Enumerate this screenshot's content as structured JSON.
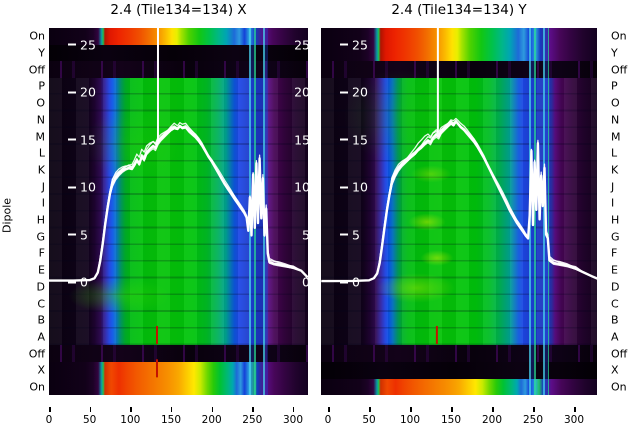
{
  "figure": {
    "y_axis_label": "Dipole",
    "row_labels": [
      "On",
      "Y",
      "Off",
      "P",
      "O",
      "N",
      "M",
      "L",
      "K",
      "J",
      "I",
      "H",
      "G",
      "F",
      "E",
      "D",
      "C",
      "B",
      "A",
      "Off",
      "X",
      "On"
    ],
    "colors": {
      "background": "#ffffff",
      "curve": "#ffffff",
      "marker_line": "#ffffff",
      "red_mark": "#c41200",
      "text": "#000000",
      "heat_low": "#0a0010",
      "heat_mid": "#00c40c",
      "heat_high": "#e01700"
    }
  },
  "chart_data": [
    {
      "type": "heatmap",
      "panel": "X",
      "title": "2.4 (Tile134=134) X",
      "x_ticks": [
        0,
        50,
        100,
        150,
        200,
        250,
        300
      ],
      "value_ticks": [
        25,
        20,
        15,
        10,
        5,
        0
      ],
      "rows": [
        "On",
        "Y",
        "Off",
        "P",
        "O",
        "N",
        "M",
        "L",
        "K",
        "J",
        "I",
        "H",
        "G",
        "F",
        "E",
        "D",
        "C",
        "B",
        "A",
        "Off",
        "X",
        "On"
      ],
      "row_bands": [
        {
          "from": 0,
          "to": 1,
          "kind": "hot"
        },
        {
          "from": 1,
          "to": 2,
          "kind": "black"
        },
        {
          "from": 2,
          "to": 3,
          "kind": "dark"
        },
        {
          "from": 3,
          "to": 19,
          "kind": "green"
        },
        {
          "from": 19,
          "to": 20,
          "kind": "dark"
        },
        {
          "from": 20,
          "to": 22,
          "kind": "hotx"
        }
      ],
      "marker_channel": 134,
      "marker_top_value": 14.7,
      "red_marks": [
        {
          "channel": 134,
          "row": "A",
          "row_index": 18
        },
        {
          "channel": 134,
          "row": "X",
          "row_index": 20
        }
      ],
      "line": [
        [
          0,
          0.15
        ],
        [
          30,
          0.15
        ],
        [
          50,
          0.2
        ],
        [
          56,
          0.4
        ],
        [
          60,
          1
        ],
        [
          63,
          2.2
        ],
        [
          66,
          4
        ],
        [
          69,
          6
        ],
        [
          72,
          7.8
        ],
        [
          75,
          9.3
        ],
        [
          78,
          10.3
        ],
        [
          82,
          11
        ],
        [
          86,
          11.4
        ],
        [
          90,
          11.7
        ],
        [
          94,
          11.9
        ],
        [
          98,
          12
        ],
        [
          102,
          11.9
        ],
        [
          105,
          12.3
        ],
        [
          108,
          12.8
        ],
        [
          111,
          12.4
        ],
        [
          114,
          13.2
        ],
        [
          117,
          12.9
        ],
        [
          120,
          13.6
        ],
        [
          124,
          14
        ],
        [
          128,
          14.3
        ],
        [
          131,
          14.1
        ],
        [
          134,
          14.7
        ],
        [
          138,
          15.1
        ],
        [
          142,
          15.4
        ],
        [
          146,
          15.7
        ],
        [
          150,
          16
        ],
        [
          154,
          16.2
        ],
        [
          158,
          16.1
        ],
        [
          161,
          16.4
        ],
        [
          164,
          16.2
        ],
        [
          168,
          16.3
        ],
        [
          172,
          15.9
        ],
        [
          176,
          15.6
        ],
        [
          180,
          15.3
        ],
        [
          184,
          14.9
        ],
        [
          188,
          14.4
        ],
        [
          192,
          13.8
        ],
        [
          196,
          13.2
        ],
        [
          200,
          12.7
        ],
        [
          204,
          12.1
        ],
        [
          208,
          11.5
        ],
        [
          212,
          10.9
        ],
        [
          216,
          10.3
        ],
        [
          220,
          9.8
        ],
        [
          224,
          9.3
        ],
        [
          228,
          8.8
        ],
        [
          232,
          8.3
        ],
        [
          236,
          7.8
        ],
        [
          240,
          7.3
        ],
        [
          243,
          6.8
        ],
        [
          245,
          5.4
        ],
        [
          247,
          8.9
        ],
        [
          249,
          4.9
        ],
        [
          251,
          11.3
        ],
        [
          253,
          5.7
        ],
        [
          255,
          12.5
        ],
        [
          257,
          6.2
        ],
        [
          259,
          13
        ],
        [
          261,
          6.7
        ],
        [
          263,
          10.9
        ],
        [
          265,
          4.9
        ],
        [
          267,
          7.7
        ],
        [
          269,
          3
        ],
        [
          271,
          2.1
        ],
        [
          276,
          1.95
        ],
        [
          282,
          1.85
        ],
        [
          290,
          1.7
        ],
        [
          300,
          1.5
        ],
        [
          310,
          1.2
        ],
        [
          318,
          0.5
        ]
      ]
    },
    {
      "type": "heatmap",
      "panel": "Y",
      "title": "2.4 (Tile134=134) Y",
      "x_ticks": [
        0,
        50,
        100,
        150,
        200,
        250,
        300
      ],
      "value_ticks": [
        25,
        20,
        15,
        10,
        5,
        0
      ],
      "rows": [
        "On",
        "Y",
        "Off",
        "P",
        "O",
        "N",
        "M",
        "L",
        "K",
        "J",
        "I",
        "H",
        "G",
        "F",
        "E",
        "D",
        "C",
        "B",
        "A",
        "Off",
        "X",
        "On"
      ],
      "row_bands": [
        {
          "from": 0,
          "to": 2,
          "kind": "hot"
        },
        {
          "from": 2,
          "to": 3,
          "kind": "dark"
        },
        {
          "from": 3,
          "to": 19,
          "kind": "green"
        },
        {
          "from": 19,
          "to": 20,
          "kind": "dark"
        },
        {
          "from": 20,
          "to": 21,
          "kind": "black"
        },
        {
          "from": 21,
          "to": 22,
          "kind": "hotx"
        }
      ],
      "marker_channel": 134,
      "marker_top_value": 15.6,
      "red_marks": [
        {
          "channel": 134,
          "row": "A",
          "row_index": 18
        }
      ],
      "line": [
        [
          -8,
          0.1
        ],
        [
          0,
          0.1
        ],
        [
          30,
          0.12
        ],
        [
          50,
          0.18
        ],
        [
          56,
          0.4
        ],
        [
          60,
          0.9
        ],
        [
          63,
          2
        ],
        [
          66,
          3.8
        ],
        [
          69,
          5.8
        ],
        [
          72,
          7.6
        ],
        [
          75,
          9.2
        ],
        [
          78,
          10.5
        ],
        [
          82,
          11.3
        ],
        [
          86,
          11.9
        ],
        [
          90,
          12.3
        ],
        [
          94,
          12.6
        ],
        [
          98,
          12.9
        ],
        [
          102,
          13.2
        ],
        [
          106,
          13.5
        ],
        [
          110,
          13.9
        ],
        [
          114,
          14.2
        ],
        [
          118,
          14.6
        ],
        [
          122,
          14.9
        ],
        [
          125,
          14.7
        ],
        [
          128,
          15.2
        ],
        [
          132,
          15.5
        ],
        [
          135,
          15.3
        ],
        [
          138,
          15.8
        ],
        [
          142,
          16.1
        ],
        [
          146,
          16.4
        ],
        [
          150,
          16.7
        ],
        [
          153,
          16.5
        ],
        [
          156,
          16.9
        ],
        [
          159,
          16.6
        ],
        [
          162,
          16.3
        ],
        [
          166,
          16
        ],
        [
          170,
          15.6
        ],
        [
          174,
          15.2
        ],
        [
          178,
          14.8
        ],
        [
          182,
          14.3
        ],
        [
          186,
          13.7
        ],
        [
          190,
          13.1
        ],
        [
          194,
          12.4
        ],
        [
          198,
          11.7
        ],
        [
          202,
          11
        ],
        [
          206,
          10.3
        ],
        [
          210,
          9.6
        ],
        [
          214,
          8.9
        ],
        [
          218,
          8.2
        ],
        [
          222,
          7.5
        ],
        [
          226,
          6.9
        ],
        [
          230,
          6.3
        ],
        [
          234,
          5.8
        ],
        [
          238,
          5.3
        ],
        [
          241,
          4.9
        ],
        [
          244,
          4.6
        ],
        [
          246,
          7
        ],
        [
          248,
          13.8
        ],
        [
          250,
          6
        ],
        [
          252,
          12.6
        ],
        [
          254,
          7.6
        ],
        [
          256,
          14.6
        ],
        [
          258,
          6.6
        ],
        [
          260,
          11.2
        ],
        [
          262,
          8
        ],
        [
          264,
          12
        ],
        [
          266,
          5
        ],
        [
          268,
          4.6
        ],
        [
          270,
          2.3
        ],
        [
          275,
          2
        ],
        [
          282,
          1.9
        ],
        [
          292,
          1.7
        ],
        [
          302,
          1.4
        ],
        [
          312,
          1
        ],
        [
          322,
          0.6
        ],
        [
          330,
          0.3
        ]
      ]
    }
  ]
}
